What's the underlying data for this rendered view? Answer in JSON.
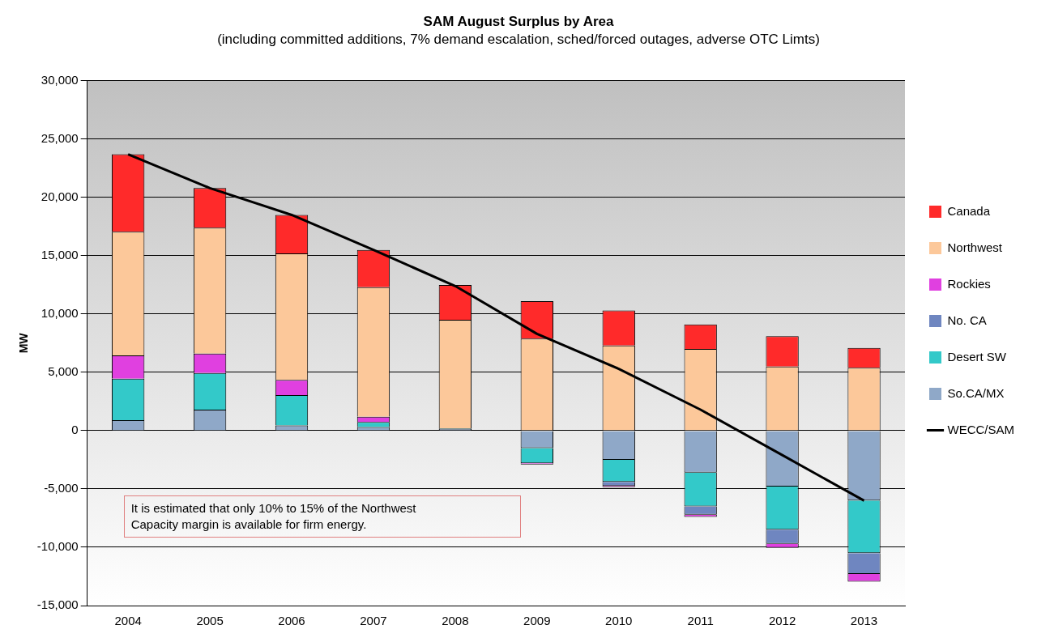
{
  "chart_data": {
    "type": "bar",
    "title": "SAM August Surplus by Area",
    "subtitle": "(including committed additions, 7% demand escalation, sched/forced outages, adverse OTC Limts)",
    "ylabel": "MW",
    "categories": [
      "2004",
      "2005",
      "2006",
      "2007",
      "2008",
      "2009",
      "2010",
      "2011",
      "2012",
      "2013"
    ],
    "stacked": true,
    "series": [
      {
        "name": "So.CA/MX",
        "color": "#8fa8c8",
        "values": [
          900,
          1800,
          450,
          300,
          150,
          -1500,
          -2500,
          -3600,
          -4800,
          -6000
        ]
      },
      {
        "name": "Desert SW",
        "color": "#33c9c9",
        "values": [
          3550,
          3150,
          2600,
          450,
          50,
          -1300,
          -1900,
          -2900,
          -3700,
          -4500
        ]
      },
      {
        "name": "No. CA",
        "color": "#6f86c0",
        "values": [
          0,
          0,
          0,
          0,
          0,
          0,
          -350,
          -700,
          -1200,
          -1800
        ]
      },
      {
        "name": "Rockies",
        "color": "#e040e0",
        "values": [
          2000,
          1650,
          1300,
          450,
          0,
          -100,
          -100,
          -200,
          -350,
          -650
        ]
      },
      {
        "name": "Northwest",
        "color": "#fcc89a",
        "values": [
          10600,
          10800,
          10850,
          11100,
          9300,
          7900,
          7300,
          7000,
          5500,
          5400
        ]
      },
      {
        "name": "Canada",
        "color": "#ff2a2a",
        "values": [
          6650,
          3400,
          3300,
          3200,
          3000,
          3200,
          3000,
          2100,
          2600,
          1700
        ]
      },
      {
        "name": "WECC/SAM",
        "type": "line",
        "color": "#000000",
        "values": [
          23700,
          20800,
          18500,
          15500,
          12400,
          8300,
          5300,
          1800,
          -2100,
          -6000
        ]
      }
    ],
    "ylim": [
      -15000,
      30000
    ],
    "yticks": [
      {
        "value": -15000,
        "label": "-15,000"
      },
      {
        "value": -10000,
        "label": "-10,000"
      },
      {
        "value": -5000,
        "label": "-5,000"
      },
      0,
      {
        "value": 5000,
        "label": "5,000"
      },
      {
        "value": 10000,
        "label": "10,000"
      },
      {
        "value": 15000,
        "label": "15,000"
      },
      {
        "value": 20000,
        "label": "20,000"
      },
      {
        "value": 25000,
        "label": "25,000"
      },
      {
        "value": 30000,
        "label": "30,000"
      }
    ],
    "grid": "y",
    "legend": "right",
    "marker": "none",
    "line_style": "solid",
    "annotations": [
      "It is estimated that only 10% to 15% of the Northwest Capacity margin is available for firm energy."
    ]
  }
}
